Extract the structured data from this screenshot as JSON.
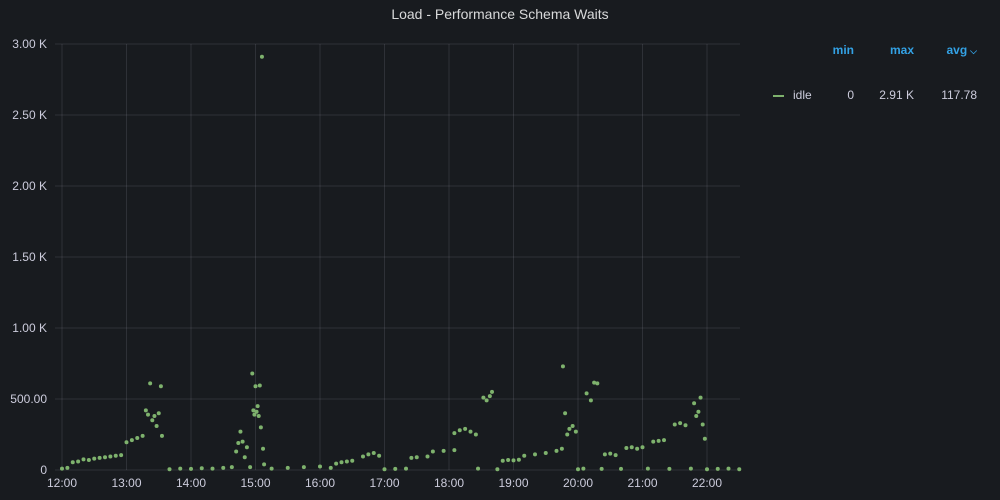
{
  "panel": {
    "title": "Load - Performance Schema Waits"
  },
  "legend": {
    "headers": {
      "min": "min",
      "max": "max",
      "avg": "avg"
    },
    "series": [
      {
        "name": "idle",
        "min": "0",
        "max": "2.91 K",
        "avg": "117.78",
        "color": "#7eb26d"
      }
    ]
  },
  "chart_data": {
    "type": "scatter",
    "title": "Load - Performance Schema Waits",
    "xlabel": "",
    "ylabel": "",
    "x_ticks": [
      "12:00",
      "13:00",
      "14:00",
      "15:00",
      "16:00",
      "17:00",
      "18:00",
      "19:00",
      "20:00",
      "21:00",
      "22:00"
    ],
    "y_ticks": [
      "0",
      "500.00",
      "1.00 K",
      "1.50 K",
      "2.00 K",
      "2.50 K",
      "3.00 K"
    ],
    "x_range": [
      "12:00",
      "22:32"
    ],
    "ylim": [
      0,
      3000
    ],
    "grid": true,
    "legend_position": "right",
    "series": [
      {
        "name": "idle",
        "color": "#7eb26d",
        "points": [
          [
            "12:00",
            10
          ],
          [
            "12:05",
            15
          ],
          [
            "12:10",
            55
          ],
          [
            "12:15",
            60
          ],
          [
            "12:20",
            75
          ],
          [
            "12:25",
            70
          ],
          [
            "12:30",
            80
          ],
          [
            "12:35",
            85
          ],
          [
            "12:40",
            90
          ],
          [
            "12:45",
            95
          ],
          [
            "12:50",
            100
          ],
          [
            "12:55",
            105
          ],
          [
            "13:00",
            195
          ],
          [
            "13:05",
            210
          ],
          [
            "13:10",
            225
          ],
          [
            "13:15",
            240
          ],
          [
            "13:18",
            420
          ],
          [
            "13:20",
            390
          ],
          [
            "13:22",
            610
          ],
          [
            "13:24",
            350
          ],
          [
            "13:26",
            380
          ],
          [
            "13:28",
            310
          ],
          [
            "13:30",
            400
          ],
          [
            "13:32",
            590
          ],
          [
            "13:33",
            240
          ],
          [
            "13:40",
            5
          ],
          [
            "13:50",
            10
          ],
          [
            "14:00",
            8
          ],
          [
            "14:10",
            12
          ],
          [
            "14:20",
            10
          ],
          [
            "14:30",
            15
          ],
          [
            "14:38",
            20
          ],
          [
            "14:42",
            130
          ],
          [
            "14:44",
            190
          ],
          [
            "14:46",
            270
          ],
          [
            "14:48",
            200
          ],
          [
            "14:50",
            90
          ],
          [
            "14:52",
            160
          ],
          [
            "14:55",
            20
          ],
          [
            "14:57",
            680
          ],
          [
            "14:58",
            420
          ],
          [
            "14:59",
            390
          ],
          [
            "15:00",
            590
          ],
          [
            "15:01",
            410
          ],
          [
            "15:02",
            450
          ],
          [
            "15:03",
            380
          ],
          [
            "15:04",
            595
          ],
          [
            "15:05",
            300
          ],
          [
            "15:06",
            2910
          ],
          [
            "15:07",
            150
          ],
          [
            "15:08",
            40
          ],
          [
            "15:15",
            10
          ],
          [
            "15:30",
            15
          ],
          [
            "15:45",
            20
          ],
          [
            "16:00",
            25
          ],
          [
            "16:10",
            15
          ],
          [
            "16:15",
            45
          ],
          [
            "16:20",
            55
          ],
          [
            "16:25",
            60
          ],
          [
            "16:30",
            65
          ],
          [
            "16:40",
            95
          ],
          [
            "16:45",
            110
          ],
          [
            "16:50",
            120
          ],
          [
            "16:55",
            100
          ],
          [
            "17:00",
            5
          ],
          [
            "17:10",
            8
          ],
          [
            "17:20",
            10
          ],
          [
            "17:25",
            85
          ],
          [
            "17:30",
            90
          ],
          [
            "17:40",
            95
          ],
          [
            "17:45",
            130
          ],
          [
            "17:55",
            135
          ],
          [
            "18:05",
            140
          ],
          [
            "18:05",
            260
          ],
          [
            "18:10",
            280
          ],
          [
            "18:15",
            290
          ],
          [
            "18:20",
            270
          ],
          [
            "18:25",
            250
          ],
          [
            "18:27",
            10
          ],
          [
            "18:32",
            510
          ],
          [
            "18:35",
            490
          ],
          [
            "18:38",
            520
          ],
          [
            "18:40",
            550
          ],
          [
            "18:45",
            5
          ],
          [
            "18:50",
            65
          ],
          [
            "18:55",
            70
          ],
          [
            "19:00",
            68
          ],
          [
            "19:05",
            72
          ],
          [
            "19:10",
            100
          ],
          [
            "19:20",
            110
          ],
          [
            "19:30",
            120
          ],
          [
            "19:40",
            135
          ],
          [
            "19:45",
            150
          ],
          [
            "19:46",
            730
          ],
          [
            "19:48",
            400
          ],
          [
            "19:50",
            250
          ],
          [
            "19:52",
            290
          ],
          [
            "19:55",
            310
          ],
          [
            "19:58",
            270
          ],
          [
            "20:00",
            5
          ],
          [
            "20:05",
            10
          ],
          [
            "20:08",
            540
          ],
          [
            "20:12",
            490
          ],
          [
            "20:15",
            615
          ],
          [
            "20:18",
            610
          ],
          [
            "20:22",
            8
          ],
          [
            "20:25",
            110
          ],
          [
            "20:30",
            115
          ],
          [
            "20:35",
            105
          ],
          [
            "20:40",
            8
          ],
          [
            "20:45",
            155
          ],
          [
            "20:50",
            160
          ],
          [
            "20:55",
            150
          ],
          [
            "21:00",
            160
          ],
          [
            "21:05",
            10
          ],
          [
            "21:10",
            200
          ],
          [
            "21:15",
            205
          ],
          [
            "21:20",
            210
          ],
          [
            "21:25",
            8
          ],
          [
            "21:30",
            320
          ],
          [
            "21:35",
            330
          ],
          [
            "21:40",
            315
          ],
          [
            "21:45",
            10
          ],
          [
            "21:48",
            470
          ],
          [
            "21:50",
            380
          ],
          [
            "21:52",
            410
          ],
          [
            "21:54",
            510
          ],
          [
            "21:56",
            320
          ],
          [
            "21:58",
            220
          ],
          [
            "22:00",
            5
          ],
          [
            "22:10",
            8
          ],
          [
            "22:20",
            10
          ],
          [
            "22:30",
            5
          ]
        ]
      }
    ]
  }
}
